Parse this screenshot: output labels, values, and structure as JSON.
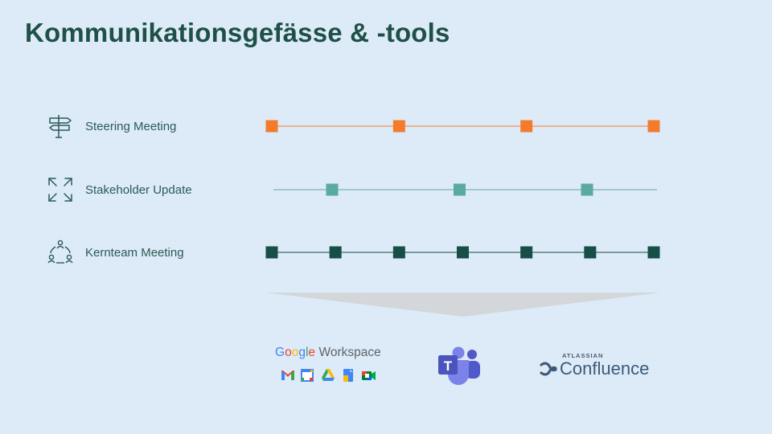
{
  "slide": {
    "title": "Kommunikationsgefässe & -tools"
  },
  "meetings": [
    {
      "label": "Steering Meeting",
      "icon": "signpost-icon",
      "color": "#f47b2c",
      "marks": 4
    },
    {
      "label": "Stakeholder Update",
      "icon": "expand-arrows-icon",
      "color": "#5aa9a2",
      "marks": 3
    },
    {
      "label": "Kernteam Meeting",
      "icon": "team-cycle-icon",
      "color": "#174e47",
      "marks": 7
    }
  ],
  "tools": {
    "google": {
      "g1": "G",
      "g2": "o",
      "g3": "o",
      "g4": "g",
      "g5": "l",
      "g6": "e",
      "workspace": "Workspace"
    },
    "teams": {
      "letter": "T"
    },
    "confluence": {
      "brand": "ATLASSIAN",
      "name": "Confluence"
    }
  },
  "colors": {
    "background": "#ddebf8",
    "title": "#1f5048",
    "funnel": "#d3d7da"
  }
}
